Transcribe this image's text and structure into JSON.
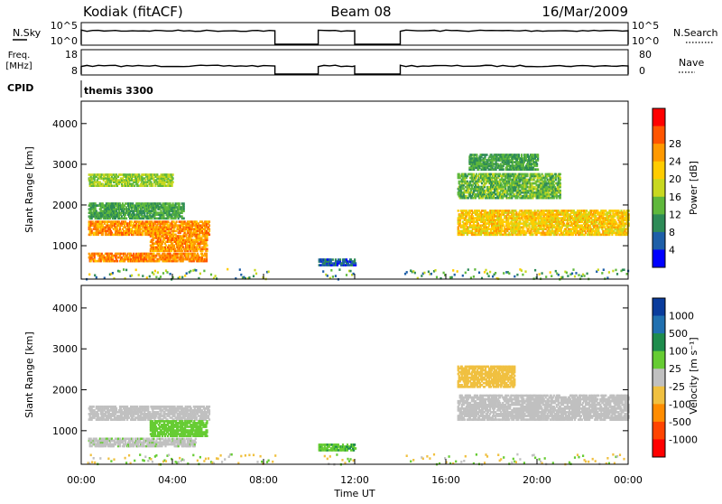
{
  "header": {
    "station": "Kodiak (fitACF)",
    "beam": "Beam 08",
    "date": "16/Mar/2009"
  },
  "top_panels": {
    "nsky": {
      "label": "N.Sky",
      "y_ticks": [
        "10^5",
        "10^0"
      ],
      "right_label": "N.Search",
      "right_ticks": [
        "10^5",
        "10^0"
      ]
    },
    "freq": {
      "label_line1": "Freq.",
      "label_line2": "[MHz]",
      "y_ticks": [
        "18",
        "8"
      ],
      "right_label": "Nave",
      "right_ticks": [
        "80",
        "0"
      ]
    },
    "cpid": {
      "label": "CPID",
      "value": "themis 3300"
    }
  },
  "axes": {
    "xlabel": "Time UT",
    "x_ticks": [
      "00:00",
      "04:00",
      "08:00",
      "12:00",
      "16:00",
      "20:00",
      "00:00"
    ],
    "ylabel": "Slant Range [km]",
    "y_ticks": [
      "1000",
      "2000",
      "3000",
      "4000"
    ]
  },
  "colorbars": {
    "power": {
      "label": "Power [dB]",
      "ticks": [
        "4",
        "8",
        "12",
        "16",
        "20",
        "24",
        "28"
      ],
      "colors": [
        "#0000ff",
        "#1e5fa8",
        "#2e8b57",
        "#5fb83c",
        "#c8d820",
        "#ffcc00",
        "#ff9900",
        "#ff5500",
        "#ff0000"
      ]
    },
    "velocity": {
      "label": "Velocity [m s⁻¹]",
      "ticks": [
        "1000",
        "500",
        "100",
        "25",
        "-25",
        "-100",
        "-500",
        "-1000"
      ],
      "colors": [
        "#0a3c9c",
        "#2070b0",
        "#1e8c4c",
        "#66cc33",
        "#c0c0c0",
        "#f0c040",
        "#ff8c00",
        "#ff4400",
        "#ff0000"
      ]
    }
  },
  "chart_data": {
    "type": "heatmap",
    "x_range_hours": [
      0,
      24
    ],
    "y_range_km": [
      180,
      4550
    ],
    "data_gaps_hours": [
      [
        8.5,
        10.4
      ],
      [
        12.0,
        14.0
      ]
    ],
    "power_regions": [
      {
        "t": [
          0.3,
          5.6
        ],
        "r": [
          1300,
          1650
        ],
        "level": 26
      },
      {
        "t": [
          0.3,
          5.5
        ],
        "r": [
          650,
          850
        ],
        "level": 27
      },
      {
        "t": [
          3.0,
          5.5
        ],
        "r": [
          900,
          1300
        ],
        "level": 26
      },
      {
        "t": [
          0.3,
          4.5
        ],
        "r": [
          1700,
          2100
        ],
        "level": 12
      },
      {
        "t": [
          0.3,
          4.0
        ],
        "r": [
          2500,
          2800
        ],
        "level": 16
      },
      {
        "t": [
          16.5,
          24.0
        ],
        "r": [
          1300,
          1900
        ],
        "level": 22
      },
      {
        "t": [
          16.5,
          21.0
        ],
        "r": [
          2200,
          2800
        ],
        "level": 14
      },
      {
        "t": [
          17.0,
          20.0
        ],
        "r": [
          2900,
          3300
        ],
        "level": 12
      },
      {
        "t": [
          10.4,
          12.0
        ],
        "r": [
          550,
          700
        ],
        "level": 6
      }
    ],
    "velocity_regions": [
      {
        "t": [
          0.3,
          5.6
        ],
        "r": [
          1300,
          1650
        ],
        "level": 0
      },
      {
        "t": [
          3.0,
          5.5
        ],
        "r": [
          900,
          1300
        ],
        "level": 80
      },
      {
        "t": [
          0.3,
          5.0
        ],
        "r": [
          650,
          850
        ],
        "level": 10
      },
      {
        "t": [
          16.5,
          24.0
        ],
        "r": [
          1300,
          1900
        ],
        "level": 0
      },
      {
        "t": [
          16.5,
          19.0
        ],
        "r": [
          2100,
          2600
        ],
        "level": -60
      },
      {
        "t": [
          10.4,
          12.0
        ],
        "r": [
          550,
          700
        ],
        "level": 90
      }
    ]
  }
}
